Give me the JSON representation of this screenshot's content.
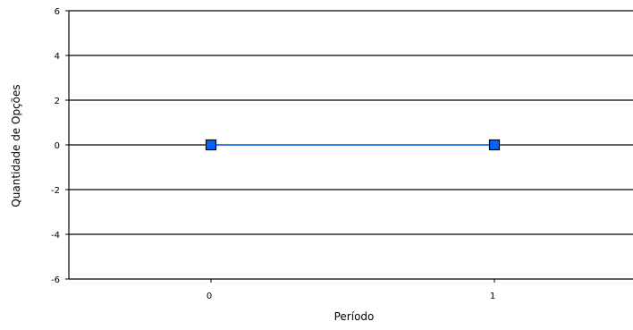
{
  "chart_data": {
    "type": "line",
    "x": [
      0,
      1
    ],
    "categories": [
      "0",
      "1"
    ],
    "series": [
      {
        "values": [
          0,
          0
        ],
        "color": "#0066ff",
        "marker": "square",
        "marker_color": "#0066ff"
      }
    ],
    "xlabel": "Período",
    "ylabel": "Quantidade de Opções",
    "ylim": [
      -6,
      6
    ],
    "yticks": [
      "-6",
      "-4",
      "-2",
      "0",
      "2",
      "4",
      "6"
    ],
    "grid": "horizontal"
  }
}
